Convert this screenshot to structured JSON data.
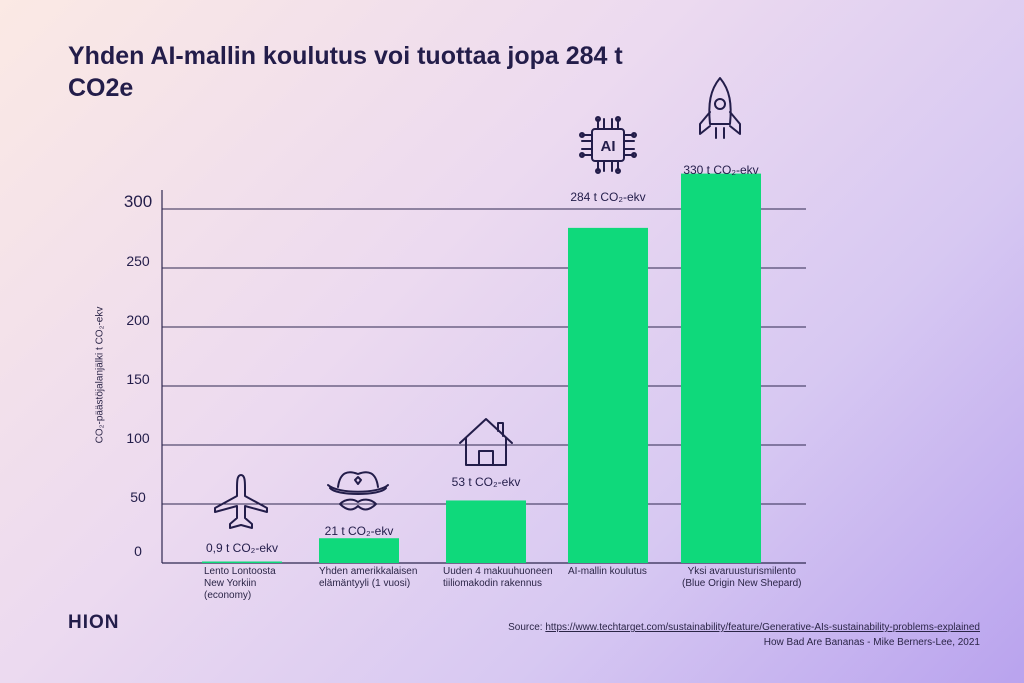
{
  "title": "Yhden AI-mallin koulutus voi tuottaa jopa 284 t CO2e",
  "logo": "HION",
  "source": {
    "prefix": "Source: ",
    "url": "https://www.techtarget.com/sustainability/feature/Generative-AIs-sustainability-problems-explained",
    "credit": "How Bad Are Bananas - Mike Berners-Lee, 2021"
  },
  "colors": {
    "bar": "#0fd97b",
    "grid": "#2f2850",
    "text": "#231d4a"
  },
  "chart_data": {
    "type": "bar",
    "ylabel": "CO₂-päästöjalanjälki t CO₂-ekv",
    "ylim": [
      0,
      320
    ],
    "yticks": [
      0,
      50,
      100,
      150,
      200,
      250,
      300
    ],
    "grid": true,
    "categories": [
      "Lento Lontoosta\nNew Yorkiin\n(economy)",
      "Yhden amerikkalaisen\nelämäntyyli (1 vuosi)",
      "Uuden 4 makuuhuoneen\ntiiliomakodin rakennus",
      "AI-mallin koulutus",
      "Yksi avaruusturismilento\n(Blue Origin New Shepard)"
    ],
    "values": [
      0.9,
      21,
      53,
      284,
      330
    ],
    "value_labels": [
      "0,9 t CO₂-ekv",
      "21 t CO₂-ekv",
      "53 t CO₂-ekv",
      "284 t CO₂-ekv",
      "330 t CO₂-ekv"
    ],
    "icons": [
      "airplane-icon",
      "cowboy-hat-icon",
      "house-icon",
      "ai-chip-icon",
      "rocket-icon"
    ]
  }
}
